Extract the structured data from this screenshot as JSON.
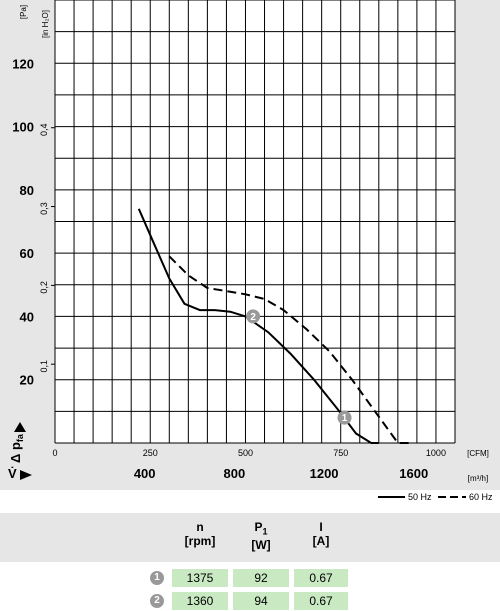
{
  "chart_data": {
    "type": "line",
    "y_unit_pa": "[Pa]",
    "y_unit_inh2o": "[in H₂O]",
    "x_unit_cfm": "[CFM]",
    "x_unit_m3h": "[m³/h]",
    "x_axis_symbol": "V̇",
    "y_axis_symbol": "Δ p",
    "y_axis_subscript": "fa",
    "pa_ticks": [
      "20",
      "40",
      "60",
      "80",
      "100",
      "120"
    ],
    "inh2o_ticks": [
      "0,1",
      "0,2",
      "0,3",
      "0,4"
    ],
    "cfm_ticks": [
      "0",
      "250",
      "500",
      "750",
      "1000"
    ],
    "m3h_ticks": [
      "400",
      "800",
      "1200",
      "1600"
    ],
    "xlim_cfm": [
      0,
      1050
    ],
    "ylim_pa": [
      0,
      140
    ],
    "grid": true,
    "series": [
      {
        "name": "50 Hz",
        "style": "solid",
        "x": [
          220,
          260,
          300,
          340,
          380,
          420,
          460,
          500,
          560,
          620,
          680,
          740,
          790,
          830,
          850
        ],
        "y": [
          74,
          63,
          52,
          44,
          42,
          42,
          41.5,
          40,
          35,
          28,
          20,
          11,
          3,
          -3,
          -6
        ]
      },
      {
        "name": "60 Hz",
        "style": "dashed",
        "x": [
          300,
          350,
          400,
          450,
          500,
          550,
          600,
          660,
          720,
          780,
          840,
          900,
          940
        ],
        "y": [
          59,
          53,
          49,
          48,
          47,
          45.5,
          42,
          36,
          29,
          20,
          10,
          0,
          -6
        ]
      }
    ],
    "markers": [
      {
        "label": "2",
        "x": 520,
        "y": 40
      },
      {
        "label": "1",
        "x": 760,
        "y": 8
      }
    ]
  },
  "legend": {
    "solid_label": "50 Hz",
    "dashed_label": "60 Hz"
  },
  "table": {
    "headers": [
      {
        "symbol": "n",
        "unit": "[rpm]"
      },
      {
        "symbol": "P",
        "subscript": "1",
        "unit": "[W]"
      },
      {
        "symbol": "I",
        "unit": "[A]"
      }
    ],
    "rows": [
      {
        "badge": "1",
        "n": "1375",
        "p": "92",
        "i": "0.67"
      },
      {
        "badge": "2",
        "n": "1360",
        "p": "94",
        "i": "0.67"
      }
    ]
  },
  "colors": {
    "cell_bg": "#c9e9c3",
    "band": "#e6e6e6",
    "badge": "#999999"
  }
}
